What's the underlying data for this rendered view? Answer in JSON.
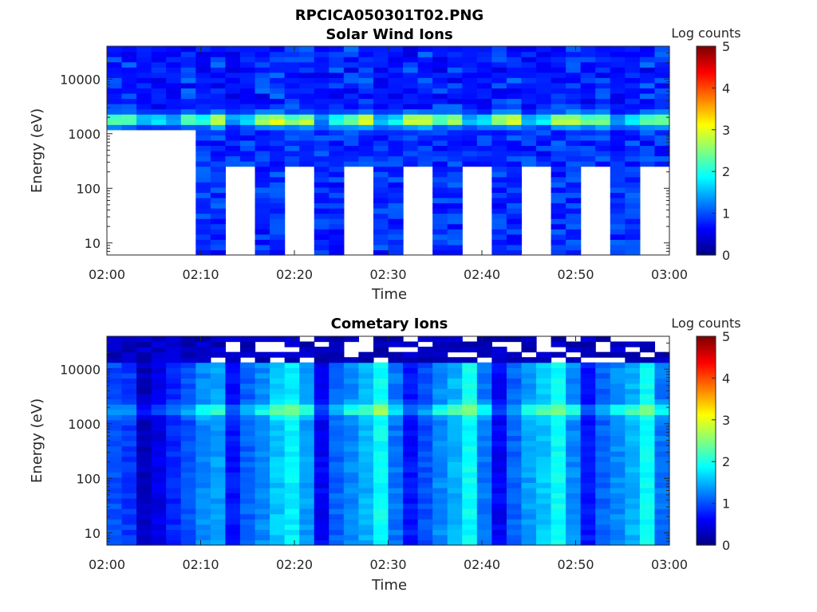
{
  "figure_title": "RPCICA050301T02.PNG",
  "colormap": [
    "#00007f",
    "#0000ff",
    "#007fff",
    "#00ffff",
    "#7fff7f",
    "#ffff00",
    "#ff7f00",
    "#ff0000",
    "#7f0000"
  ],
  "chart_data": [
    {
      "type": "heatmap",
      "title": "Solar Wind Ions",
      "xlabel": "Time",
      "ylabel": "Energy (eV)",
      "x_range": [
        "02:00",
        "03:00"
      ],
      "x_ticks": [
        "02:00",
        "02:10",
        "02:20",
        "02:30",
        "02:40",
        "02:50",
        "03:00"
      ],
      "y_scale": "log",
      "y_range": [
        6,
        40000
      ],
      "y_ticks": [
        10,
        100,
        1000,
        10000
      ],
      "y_tick_labels": [
        "10",
        "100",
        "1000",
        "10000"
      ],
      "colorbar_label": "Log counts",
      "colorbar_range": [
        0,
        5
      ],
      "colorbar_ticks": [
        "0",
        "1",
        "2",
        "3",
        "4",
        "5"
      ],
      "num_time_bins": 38,
      "peak_energy_ev": 1800,
      "peak_log_counts": [
        1.8,
        1.8,
        1.0,
        1.2,
        0.8,
        1.9,
        1.5,
        2.3,
        0.9,
        1.2,
        2.2,
        2.5,
        1.9,
        2.3,
        0.8,
        1.6,
        2.1,
        2.5,
        1.0,
        1.3,
        2.3,
        2.5,
        1.9,
        2.3,
        0.9,
        1.3,
        2.2,
        2.5,
        1.0,
        1.4,
        2.3,
        2.5,
        1.9,
        2.2,
        0.9,
        1.4,
        2.0,
        2.1
      ],
      "low_energy_cutoff_ev": 280,
      "initial_gap": {
        "end": "02:09",
        "below_energy_ev": 1100
      }
    },
    {
      "type": "heatmap",
      "title": "Cometary Ions",
      "xlabel": "Time",
      "ylabel": "Energy (eV)",
      "x_range": [
        "02:00",
        "03:00"
      ],
      "x_ticks": [
        "02:00",
        "02:10",
        "02:20",
        "02:30",
        "02:40",
        "02:50",
        "03:00"
      ],
      "y_scale": "log",
      "y_range": [
        6,
        40000
      ],
      "y_ticks": [
        10,
        100,
        1000,
        10000
      ],
      "y_tick_labels": [
        "10",
        "100",
        "1000",
        "10000"
      ],
      "colorbar_label": "Log counts",
      "colorbar_range": [
        0,
        5
      ],
      "colorbar_ticks": [
        "0",
        "1",
        "2",
        "3",
        "4",
        "5"
      ],
      "num_time_bins": 38,
      "peak_energy_ev": 1800,
      "column_log_counts": [
        1.0,
        0.9,
        0.3,
        0.5,
        0.8,
        1.0,
        1.3,
        1.4,
        0.7,
        1.1,
        1.3,
        1.6,
        1.8,
        1.4,
        0.6,
        1.1,
        1.3,
        1.5,
        1.9,
        1.2,
        0.7,
        1.0,
        1.3,
        1.5,
        1.9,
        1.2,
        0.6,
        1.1,
        1.4,
        1.6,
        1.9,
        1.3,
        0.7,
        1.1,
        1.3,
        1.5,
        1.9,
        1.2
      ]
    }
  ]
}
